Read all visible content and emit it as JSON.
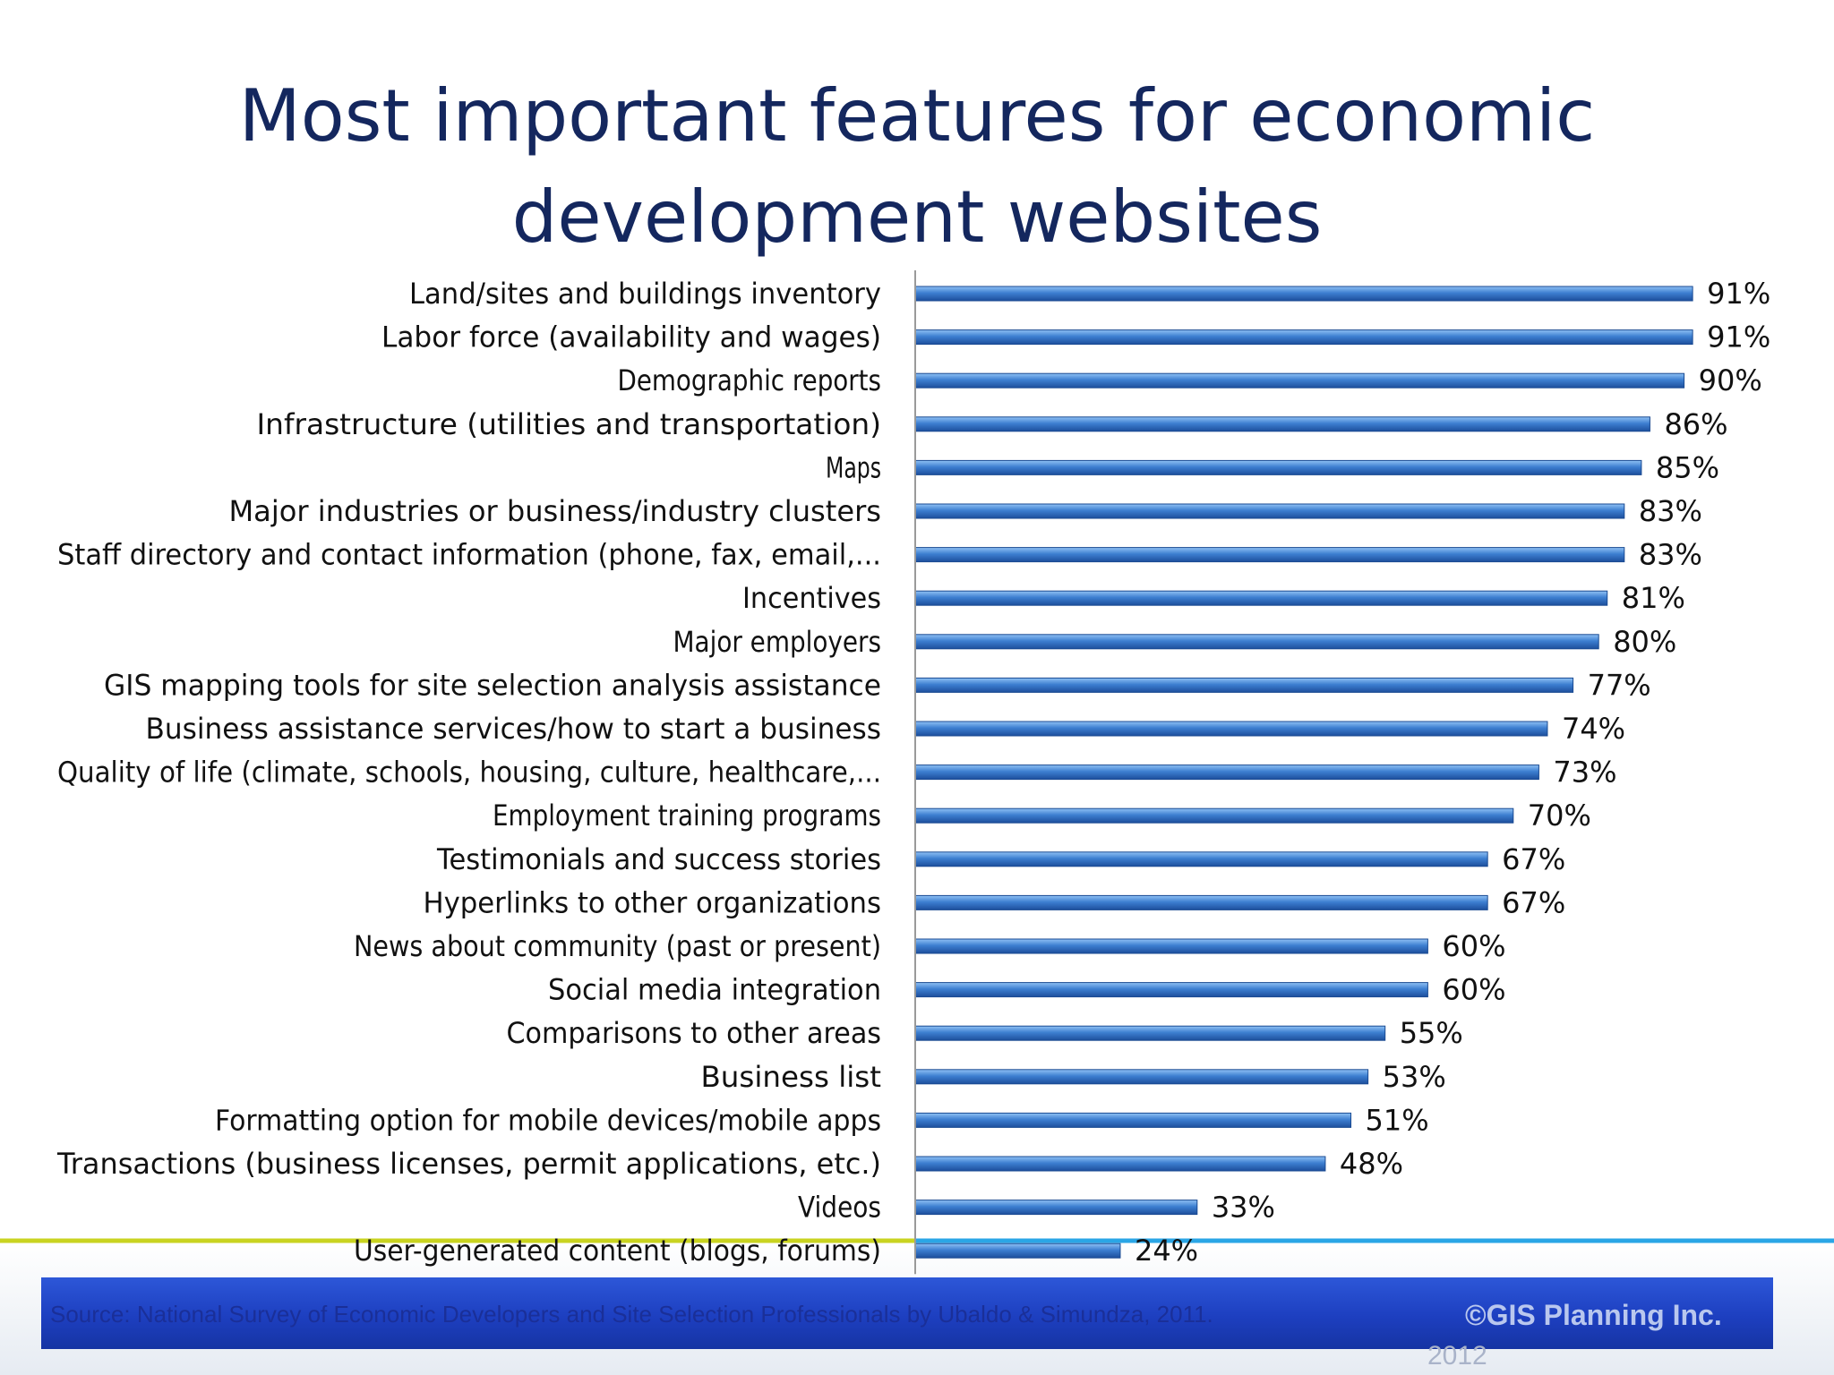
{
  "title_line1": "Most important features for economic",
  "title_line2": "development websites",
  "source": "Source: National Survey of Economic Developers and Site Selection Professionals by Ubaldo & Simundza, 2011.",
  "copyright": "©GIS Planning Inc.",
  "copyright_year": "2012",
  "colors": {
    "title": "#14275e",
    "bar_top": "#8fc1f5",
    "bar_mid": "#3d7fd1",
    "bar_bottom": "#1d4f9c",
    "source_band": "#1d3fc0",
    "accent_line_left": "#c9d320",
    "accent_line_right": "#2aa6e6"
  },
  "chart_data": {
    "type": "bar",
    "orientation": "horizontal",
    "title": "Most important features for economic development websites",
    "categories": [
      "Land/sites and buildings inventory",
      "Labor force (availability and wages)",
      "Demographic reports",
      "Infrastructure (utilities and transportation)",
      "Maps",
      "Major industries or business/industry  clusters",
      "Staff directory and contact information (phone, fax, email,...",
      "Incentives",
      "Major employers",
      "GIS mapping tools for site selection analysis assistance",
      "Business assistance services/how  to start a business",
      "Quality of life (climate, schools,  housing, culture, healthcare,...",
      "Employment training programs",
      "Testimonials and success stories",
      "Hyperlinks to other organizations",
      "News about community (past or present)",
      "Social media integration",
      "Comparisons  to other areas",
      "Business list",
      "Formatting option for mobile devices/mobile apps",
      "Transactions (business  licenses, permit applications, etc.)",
      "Videos",
      "User-generated content (blogs, forums)"
    ],
    "values": [
      91,
      91,
      90,
      86,
      85,
      83,
      83,
      81,
      80,
      77,
      74,
      73,
      70,
      67,
      67,
      60,
      60,
      55,
      53,
      51,
      48,
      33,
      24
    ],
    "value_labels": [
      "91%",
      "91%",
      "90%",
      "86%",
      "85%",
      "83%",
      "83%",
      "81%",
      "80%",
      "77%",
      "74%",
      "73%",
      "70%",
      "67%",
      "67%",
      "60%",
      "60%",
      "55%",
      "53%",
      "51%",
      "48%",
      "33%",
      "24%"
    ],
    "unit": "%",
    "xlabel": "",
    "ylabel": "",
    "grid": false,
    "legend": "none"
  }
}
